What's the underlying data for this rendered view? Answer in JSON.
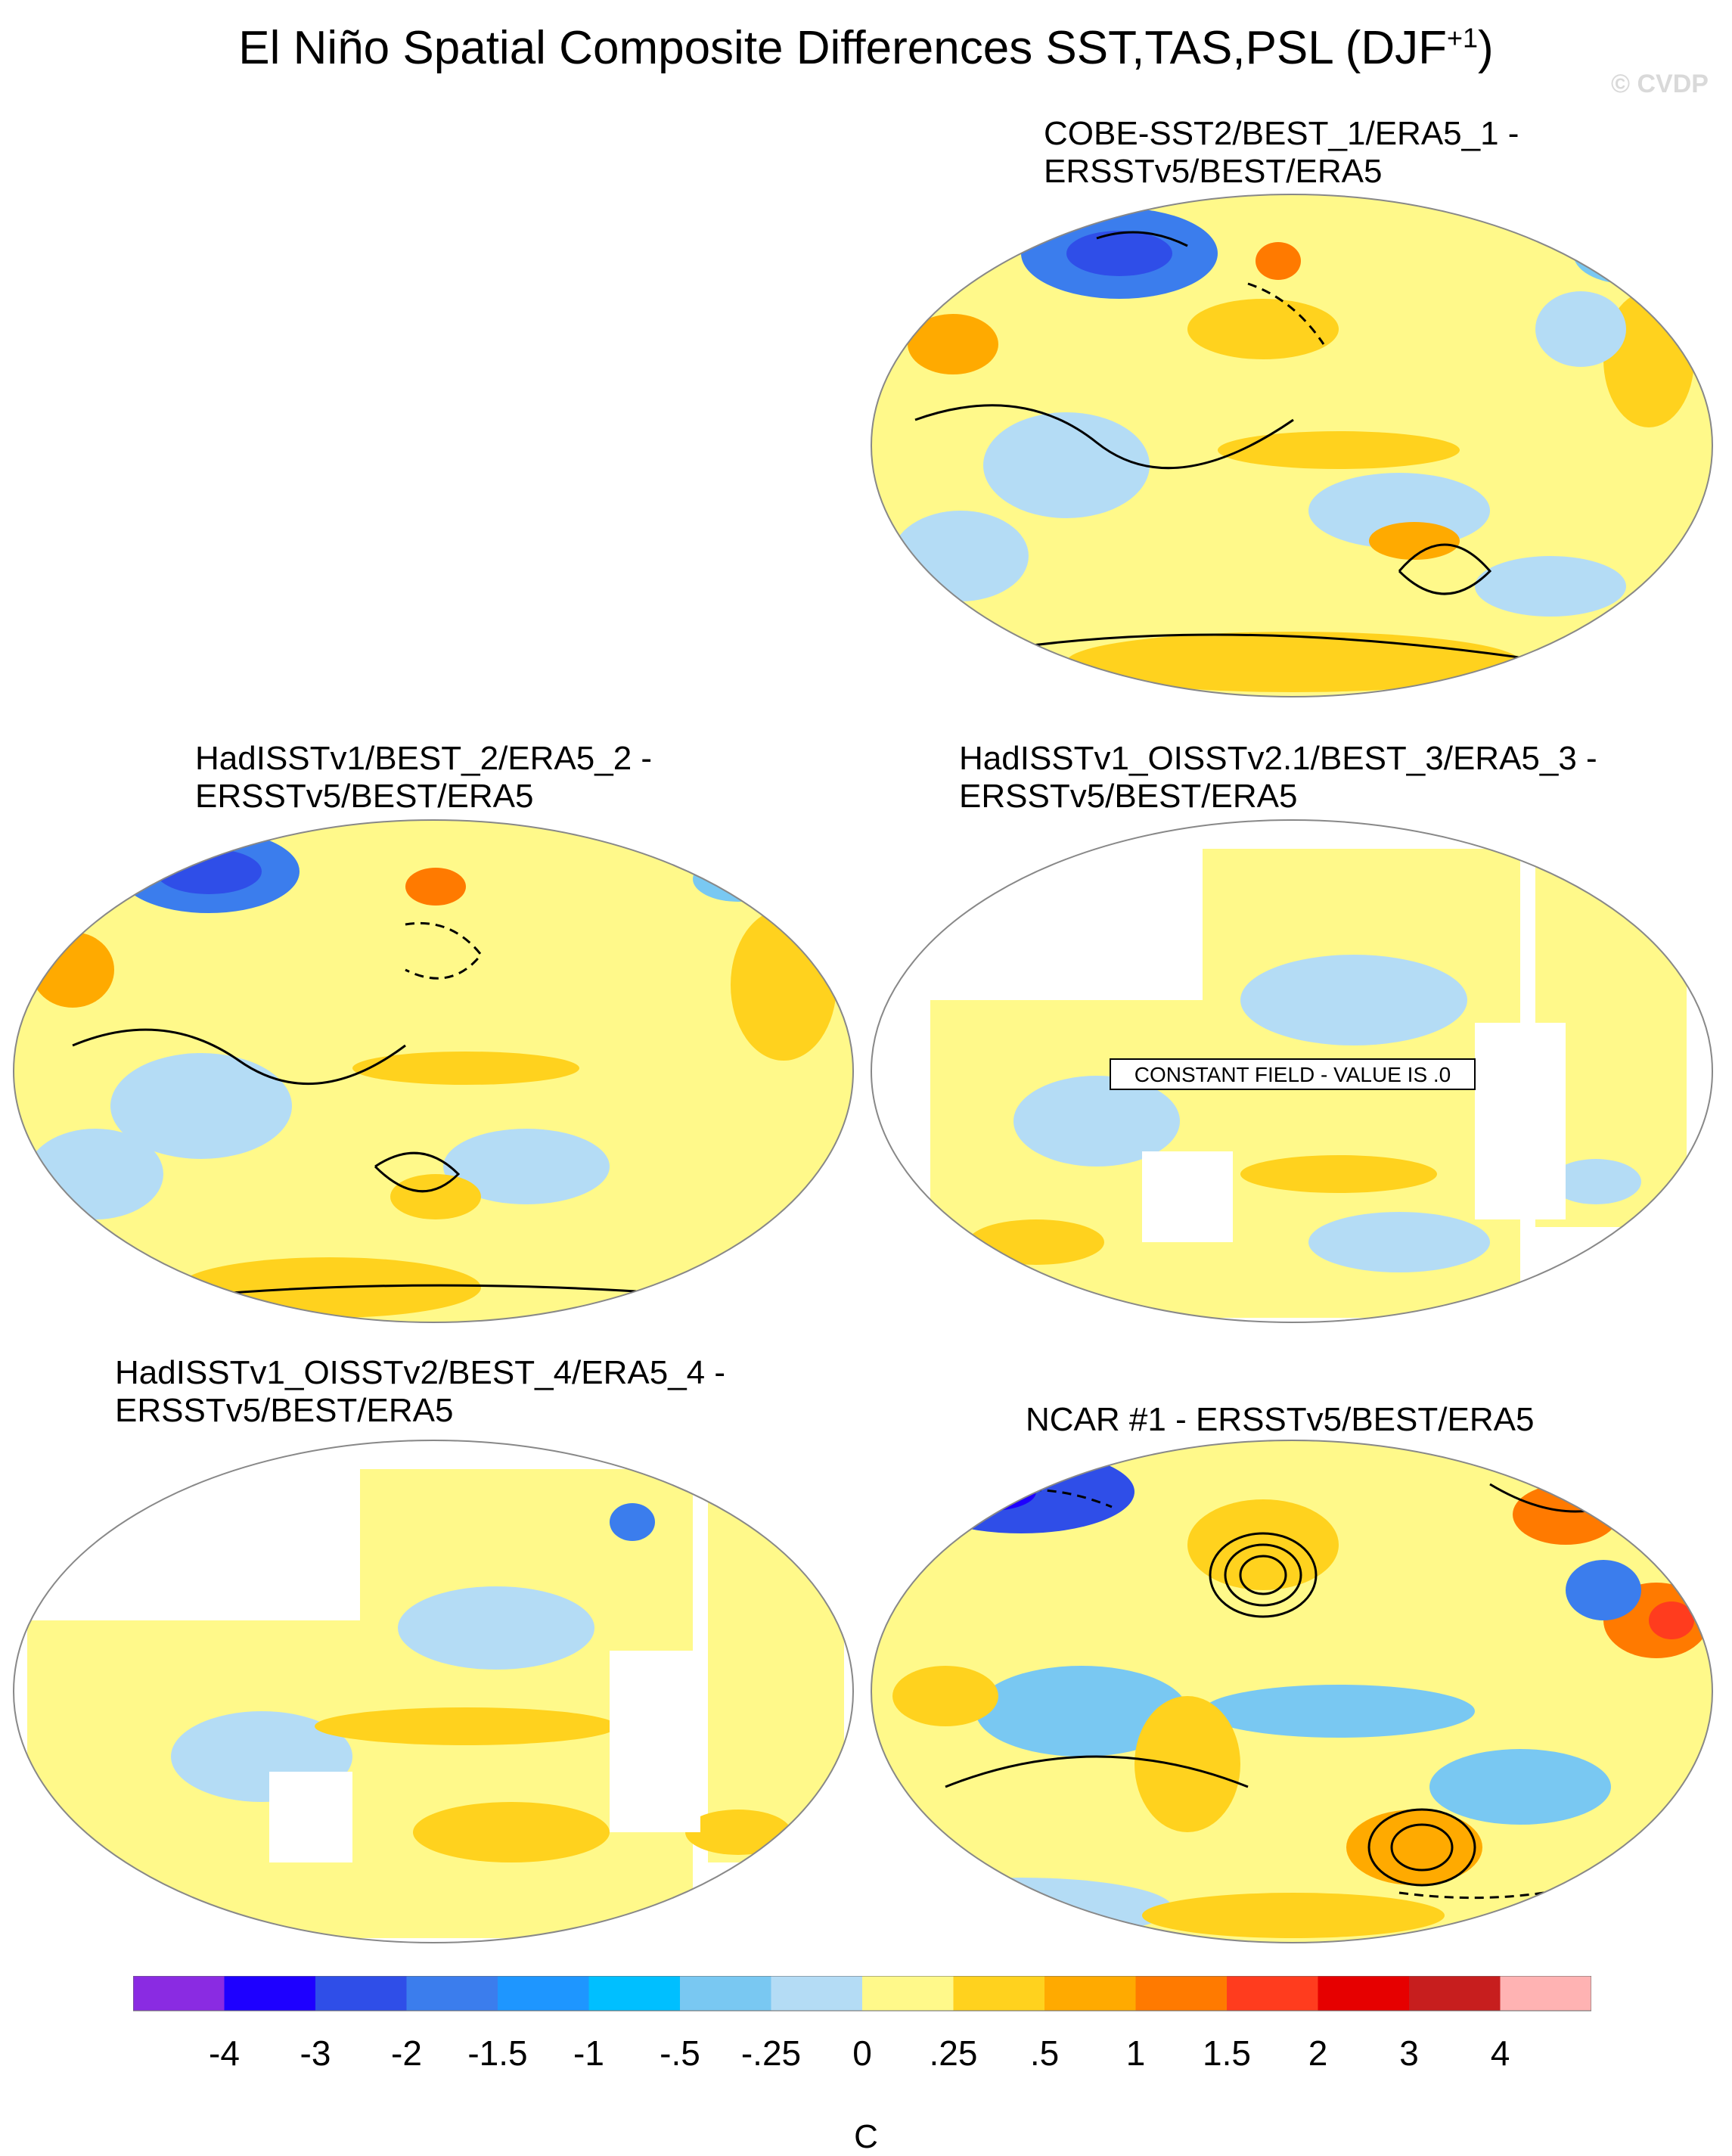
{
  "title": "El Niño Spatial Composite Differences SST,TAS,PSL (DJF",
  "title_superscript": "+1",
  "title_close": ")",
  "watermark": "© CVDP",
  "panels": [
    {
      "line1": "COBE-SST2/BEST_1/ERA5_1 -",
      "line2": "ERSSTv5/BEST/ERA5"
    },
    {
      "line1": "HadISSTv1/BEST_2/ERA5_2 -",
      "line2": "ERSSTv5/BEST/ERA5"
    },
    {
      "line1": "HadISSTv1_OISSTv2.1/BEST_3/ERA5_3 -",
      "line2": "ERSSTv5/BEST/ERA5",
      "annotation": "CONSTANT FIELD - VALUE IS .0"
    },
    {
      "line1": "HadISSTv1_OISSTv2/BEST_4/ERA5_4 -",
      "line2": "ERSSTv5/BEST/ERA5"
    },
    {
      "line1": "NCAR #1 - ERSSTv5/BEST/ERA5"
    }
  ],
  "chart_data": {
    "type": "heatmap",
    "projection": "Robinson (Pacific-centered)",
    "variables": [
      "SST",
      "TAS",
      "PSL (contours)"
    ],
    "season": "DJF+1",
    "colorbar": {
      "levels": [
        "-4",
        "-3",
        "-2",
        "-1.5",
        "-1",
        "-.5",
        "-.25",
        "0",
        ".25",
        ".5",
        "1",
        "1.5",
        "2",
        "3",
        "4"
      ],
      "colors": [
        "#8a2be2",
        "#1e00ff",
        "#2f4ee8",
        "#3b7ded",
        "#1e96ff",
        "#00bfff",
        "#79c8f2",
        "#b4dcf5",
        "#fff98a",
        "#ffd21e",
        "#ffaa00",
        "#ff7a00",
        "#ff3c1e",
        "#e60000",
        "#c71e1e",
        "#ffb3b3"
      ],
      "units": "C"
    }
  }
}
